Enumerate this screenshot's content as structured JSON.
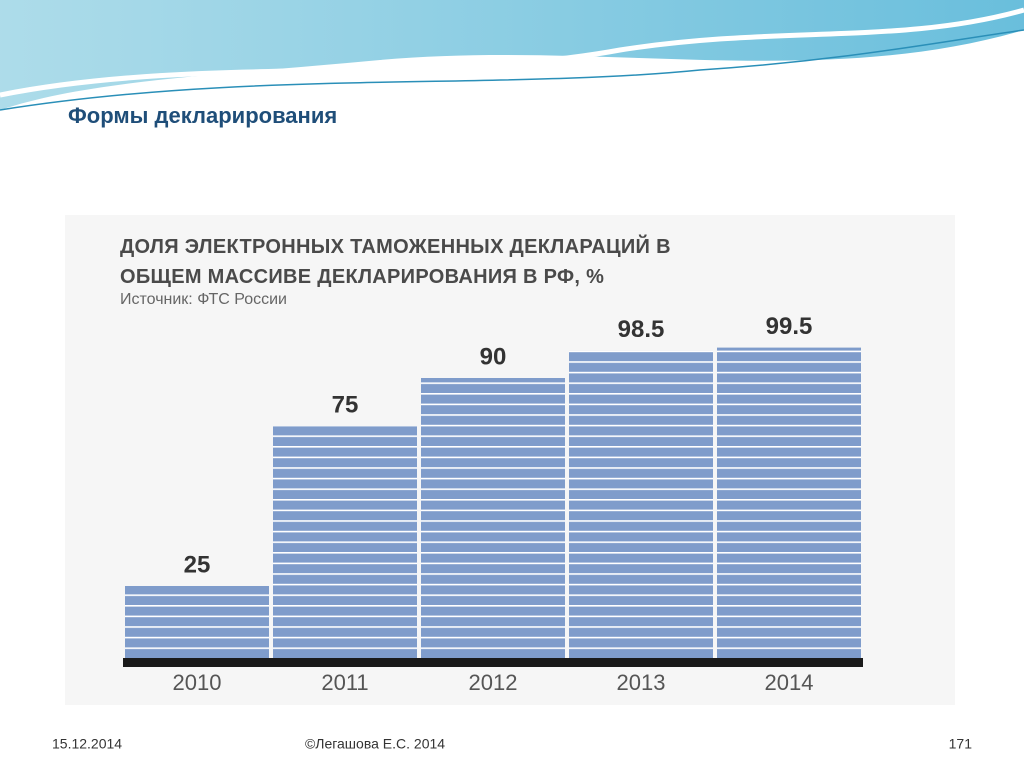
{
  "slide_title": "Формы декларирования",
  "chart_data": {
    "type": "bar",
    "title": "ДОЛЯ ЭЛЕКТРОННЫХ ТАМОЖЕННЫХ ДЕКЛАРАЦИЙ В ОБЩЕМ МАССИВЕ ДЕКЛАРИРОВАНИЯ В РФ, %",
    "subtitle": "Источник: ФТС России",
    "categories": [
      "2010",
      "2011",
      "2012",
      "2013",
      "2014"
    ],
    "values": [
      25,
      75,
      90,
      98.5,
      99.5
    ],
    "color": "#7f9ccb",
    "ylim": [
      0,
      100
    ]
  },
  "footer": {
    "date": "15.12.2014",
    "author": "©Легашова Е.С. 2014",
    "page": "171"
  }
}
